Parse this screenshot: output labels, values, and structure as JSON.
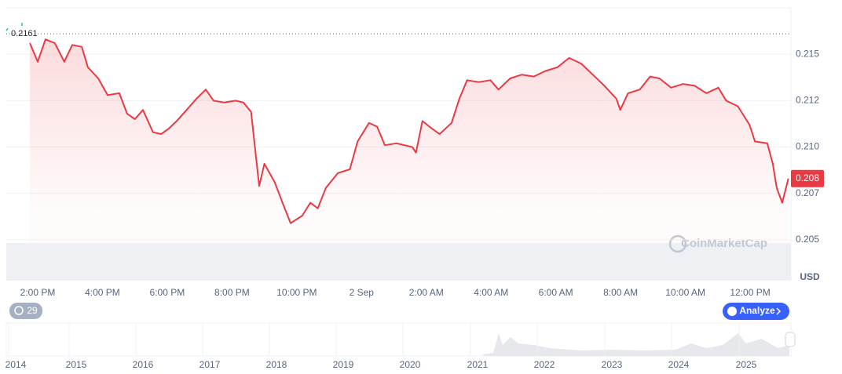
{
  "chart_data": {
    "type": "line",
    "color": "#ea3943",
    "x": [
      13.76,
      14,
      14.24,
      14.53,
      14.82,
      15.07,
      15.36,
      15.55,
      15.87,
      16.16,
      16.52,
      16.76,
      17,
      17.25,
      17.56,
      17.81,
      18.05,
      18.29,
      18.65,
      18.9,
      19.19,
      19.43,
      19.75,
      20.11,
      20.35,
      20.59,
      20.84,
      21,
      21.32,
      21.56,
      21.81,
      22.17,
      22.42,
      22.65,
      22.9,
      23.27,
      23.64,
      23.88,
      24.23,
      24.48,
      24.72,
      25.08,
      25.33,
      25.57,
      25.68,
      25.88,
      26.17,
      26.41,
      26.78,
      27.02,
      27.26,
      27.62,
      27.98,
      28.23,
      28.59,
      28.95,
      29.32,
      29.68,
      30.05,
      30.41,
      30.78,
      31.14,
      31.5,
      31.87,
      31.99,
      32.23,
      32.59,
      32.91,
      33.2,
      33.56,
      33.93,
      34.29,
      34.65,
      35.02,
      35.26,
      35.62,
      35.98,
      36.15,
      36.53,
      36.7,
      36.82,
      36.99,
      37.18
    ],
    "values": [
      0.2156,
      0.2146,
      0.2158,
      0.2156,
      0.2146,
      0.2155,
      0.2154,
      0.2143,
      0.2137,
      0.2128,
      0.2129,
      0.2118,
      0.2115,
      0.212,
      0.2108,
      0.2107,
      0.211,
      0.2114,
      0.2121,
      0.2126,
      0.2131,
      0.2125,
      0.2124,
      0.2125,
      0.2124,
      0.2119,
      0.2079,
      0.2091,
      0.2081,
      0.207,
      0.2059,
      0.2063,
      0.207,
      0.2067,
      0.2078,
      0.2086,
      0.2088,
      0.2103,
      0.2113,
      0.2111,
      0.2101,
      0.2102,
      0.2101,
      0.21,
      0.2097,
      0.2114,
      0.211,
      0.2107,
      0.2113,
      0.2126,
      0.2136,
      0.2135,
      0.2136,
      0.2131,
      0.2137,
      0.2139,
      0.2138,
      0.2141,
      0.2143,
      0.2148,
      0.2145,
      0.2139,
      0.2133,
      0.2126,
      0.212,
      0.2129,
      0.2131,
      0.2138,
      0.2137,
      0.2132,
      0.2134,
      0.2133,
      0.2129,
      0.2132,
      0.2125,
      0.2122,
      0.2112,
      0.2103,
      0.2102,
      0.2091,
      0.2078,
      0.207,
      0.2083
    ],
    "xlim": [
      13.03,
      37.26
    ],
    "xticks": [
      {
        "value": 14,
        "label": "2:00 PM"
      },
      {
        "value": 16,
        "label": "4:00 PM"
      },
      {
        "value": 18,
        "label": "6:00 PM"
      },
      {
        "value": 20,
        "label": "8:00 PM"
      },
      {
        "value": 22,
        "label": "10:00 PM"
      },
      {
        "value": 24,
        "label": "2 Sep"
      },
      {
        "value": 26,
        "label": "2:00 AM"
      },
      {
        "value": 28,
        "label": "4:00 AM"
      },
      {
        "value": 30,
        "label": "6:00 AM"
      },
      {
        "value": 32,
        "label": "8:00 AM"
      },
      {
        "value": 34,
        "label": "10:00 AM"
      },
      {
        "value": 36,
        "label": "12:00 PM"
      }
    ],
    "ylim": [
      0.2028,
      0.2175
    ],
    "yticks": [
      0.205,
      {
        "value": 0.2075,
        "label": "0.207"
      },
      {
        "value": 0.21,
        "label": "0.210"
      },
      {
        "value": 0.2125,
        "label": "0.212"
      },
      0.215
    ],
    "grid": true,
    "y_unit": "USD",
    "reference_value": 0.2161,
    "last_price": {
      "value": 0.2083,
      "label": "0.208"
    },
    "watermark": "CoinMarketCap",
    "badge": "29",
    "button": "Analyze",
    "navigator_years": [
      "2014",
      "2015",
      "2016",
      "2017",
      "2018",
      "2019",
      "2020",
      "2021",
      "2022",
      "2023",
      "2024",
      "2025"
    ]
  }
}
